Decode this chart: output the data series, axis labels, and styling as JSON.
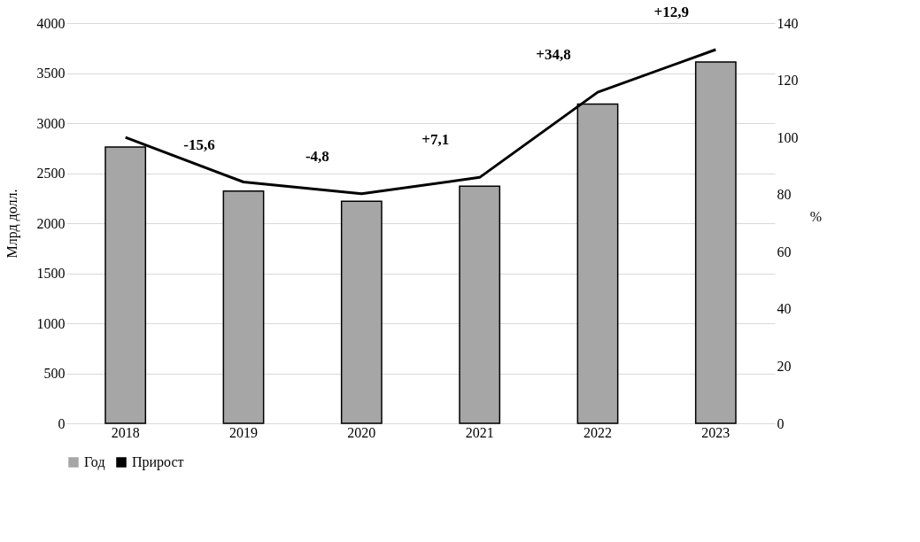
{
  "chart_data": {
    "type": "bar",
    "categories": [
      "2018",
      "2019",
      "2020",
      "2021",
      "2022",
      "2023"
    ],
    "ylabel": "Млрд долл.",
    "y2label": "%",
    "ylim": [
      0,
      4000
    ],
    "yticks": [
      0,
      500,
      1000,
      1500,
      2000,
      2500,
      3000,
      3500,
      4000
    ],
    "y2lim": [
      0,
      140
    ],
    "y2ticks": [
      0,
      20,
      40,
      60,
      80,
      100,
      120,
      140
    ],
    "grid": "y",
    "legend": "bottom",
    "series": [
      {
        "name": "Год",
        "color": "#a6a6a6",
        "values": [
          2760,
          2320,
          2220,
          2370,
          3190,
          3610
        ]
      },
      {
        "name": "Прирост",
        "type": "line",
        "axis": "y2",
        "color": "#000000",
        "values": [
          100,
          84.4,
          80.3,
          86,
          115.8,
          130.7
        ]
      }
    ],
    "annotations": [
      "-15,6",
      "-4,8",
      "+7,1",
      "+34,8",
      "+12,9"
    ]
  }
}
